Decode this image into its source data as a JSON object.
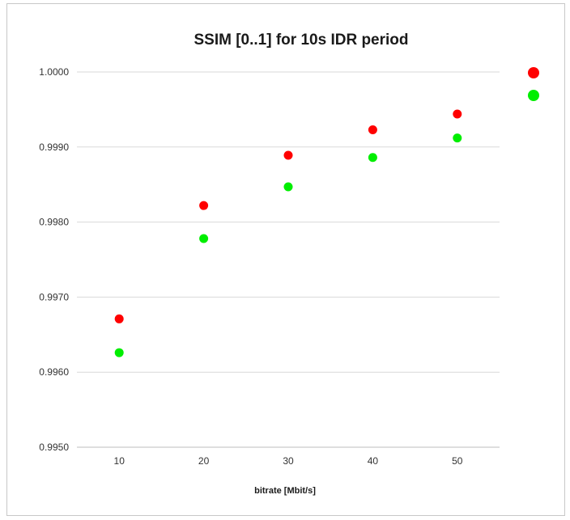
{
  "chart_data": {
    "type": "scatter",
    "title": "SSIM [0..1] for 10s IDR period",
    "xlabel": "bitrate [Mbit/s]",
    "ylabel": "",
    "x": [
      10,
      20,
      30,
      40,
      50
    ],
    "xlim": [
      5,
      55
    ],
    "ylim": [
      0.995,
      1.0
    ],
    "yticks": [
      0.995,
      0.996,
      0.997,
      0.998,
      0.999,
      1.0
    ],
    "ytick_labels": [
      "0.9950",
      "0.9960",
      "0.9970",
      "0.9980",
      "0.9990",
      "1.0000"
    ],
    "xtick_labels": [
      "10",
      "20",
      "30",
      "40",
      "50"
    ],
    "grid": true,
    "legend": "right (color markers only)",
    "series": [
      {
        "color": "#ff0000",
        "values": [
          0.99671,
          0.99822,
          0.99889,
          0.99923,
          0.99944
        ]
      },
      {
        "color": "#00ee00",
        "values": [
          0.99626,
          0.99778,
          0.99847,
          0.99886,
          0.99912
        ]
      }
    ]
  }
}
